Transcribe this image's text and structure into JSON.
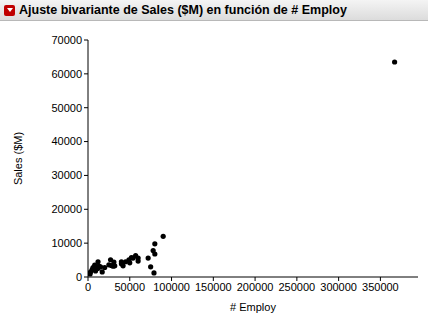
{
  "chart_data": {
    "type": "scatter",
    "title": "Ajuste bivariante de Sales ($M) en función de # Employ",
    "x_label": "# Employ",
    "y_label": "Sales ($M)",
    "x": [
      1000,
      2500,
      3000,
      5000,
      6000,
      8000,
      9000,
      11000,
      12000,
      13000,
      12000,
      15000,
      20000,
      17000,
      25000,
      27000,
      30000,
      32000,
      28000,
      31000,
      40000,
      42000,
      40000,
      49000,
      45000,
      54000,
      60000,
      52000,
      57000,
      50000,
      78000,
      72000,
      80000,
      60000,
      80000,
      79000,
      75000,
      90000,
      367000
    ],
    "values": [
      1000,
      900,
      1500,
      2200,
      2800,
      3500,
      1800,
      2500,
      2600,
      3200,
      4500,
      3000,
      2800,
      1500,
      3600,
      5100,
      3200,
      3300,
      3400,
      4400,
      4500,
      3300,
      3900,
      5100,
      4500,
      5600,
      4700,
      5700,
      6300,
      4200,
      7800,
      5600,
      6800,
      5600,
      9800,
      1200,
      3000,
      12000,
      63500
    ],
    "color": "#000000",
    "marker": "circle",
    "grid": false,
    "xlim": [
      0,
      395000
    ],
    "xticks": [
      0,
      50000,
      100000,
      150000,
      200000,
      250000,
      300000,
      350000
    ],
    "ylim": [
      0,
      70000
    ],
    "yticks": [
      0,
      10000,
      20000,
      30000,
      40000,
      50000,
      60000,
      70000
    ]
  }
}
